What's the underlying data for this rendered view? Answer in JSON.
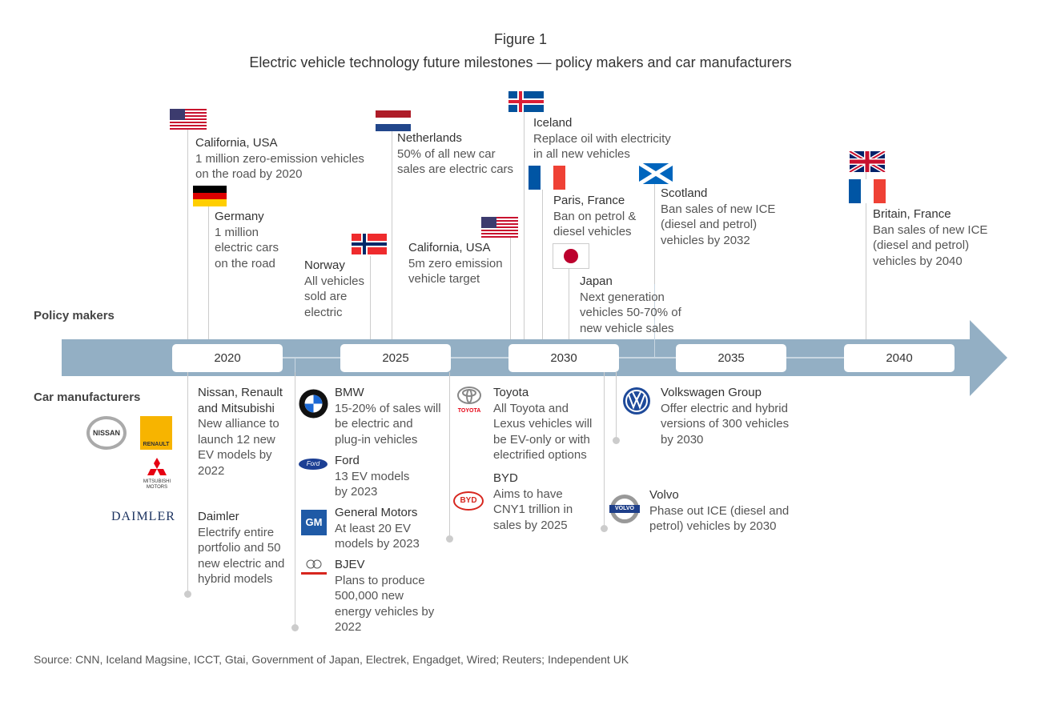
{
  "header": {
    "figure": "Figure 1",
    "title": "Electric vehicle technology future milestones — policy makers and car manufacturers"
  },
  "sections": {
    "policy": "Policy makers",
    "manufacturers": "Car manufacturers"
  },
  "timeline": {
    "color": "#93afc4",
    "years": [
      "2020",
      "2025",
      "2030",
      "2035",
      "2040"
    ]
  },
  "policy": [
    {
      "flag": "usa-flag",
      "name": "California, USA",
      "text": "1 million zero-emission vehicles on the road by 2020"
    },
    {
      "flag": "germany-flag",
      "name": "Germany",
      "text": "1 million electric cars on the road"
    },
    {
      "flag": "norway-flag",
      "name": "Norway",
      "text": "All vehicles sold are electric"
    },
    {
      "flag": "netherlands-flag",
      "name": "Netherlands",
      "text": "50% of all new car sales are electric cars"
    },
    {
      "flag": "usa-flag",
      "name": "California, USA",
      "text": "5m zero emission vehicle target"
    },
    {
      "flag": "iceland-flag",
      "name": "Iceland",
      "text": "Replace oil with electricity in all new vehicles"
    },
    {
      "flag": "france-flag",
      "name": "Paris, France",
      "text": "Ban on petrol & diesel vehicles"
    },
    {
      "flag": "japan-flag",
      "name": "Japan",
      "text": "Next generation vehicles 50-70% of new vehicle sales"
    },
    {
      "flag": "scotland-flag",
      "name": "Scotland",
      "text": "Ban sales of new ICE (diesel and petrol) vehicles by 2032"
    },
    {
      "flag": "uk-france-flags",
      "name": "Britain, France",
      "text": "Ban sales of new ICE (diesel and petrol) vehicles by 2040"
    }
  ],
  "manufacturers": [
    {
      "logo": "nissan-renault-mitsubishi-logos",
      "name": "Nissan, Renault and Mitsubishi",
      "text": "New alliance to launch 12 new EV models by 2022"
    },
    {
      "logo": "daimler-logo",
      "name": "Daimler",
      "text": "Electrify entire portfolio and 50 new electric and hybrid models"
    },
    {
      "logo": "bmw-logo",
      "name": "BMW",
      "text": "15-20% of sales will be electric and plug-in vehicles"
    },
    {
      "logo": "ford-logo",
      "name": "Ford",
      "text": "13 EV models by 2023"
    },
    {
      "logo": "gm-logo",
      "name": "General Motors",
      "text": "At least 20 EV models by 2023"
    },
    {
      "logo": "bjev-logo",
      "name": "BJEV",
      "text": "Plans to produce 500,000 new energy vehicles by 2022"
    },
    {
      "logo": "toyota-logo",
      "name": "Toyota",
      "text": "All Toyota and Lexus vehicles will be EV-only or with electrified options"
    },
    {
      "logo": "byd-logo",
      "name": "BYD",
      "text": "Aims to have CNY1 trillion in sales by 2025"
    },
    {
      "logo": "volkswagen-logo",
      "name": "Volkswagen Group",
      "text": "Offer electric and hybrid versions of 300 vehicles by 2030"
    },
    {
      "logo": "volvo-logo",
      "name": "Volvo",
      "text": "Phase out ICE (diesel and petrol) vehicles by 2030"
    }
  ],
  "logo_text": {
    "nissan": "NISSAN",
    "renault": "RENAULT",
    "mitsubishi": "MITSUBISHI MOTORS",
    "daimler": "DAIMLER",
    "ford": "Ford",
    "gm": "GM",
    "toyota": "TOYOTA",
    "byd": "BYD",
    "volvo": "VOLVO"
  },
  "source": "Source: CNN, Iceland Magsine, ICCT, Gtai, Government of Japan, Electrek, Engadget, Wired; Reuters; Independent UK"
}
